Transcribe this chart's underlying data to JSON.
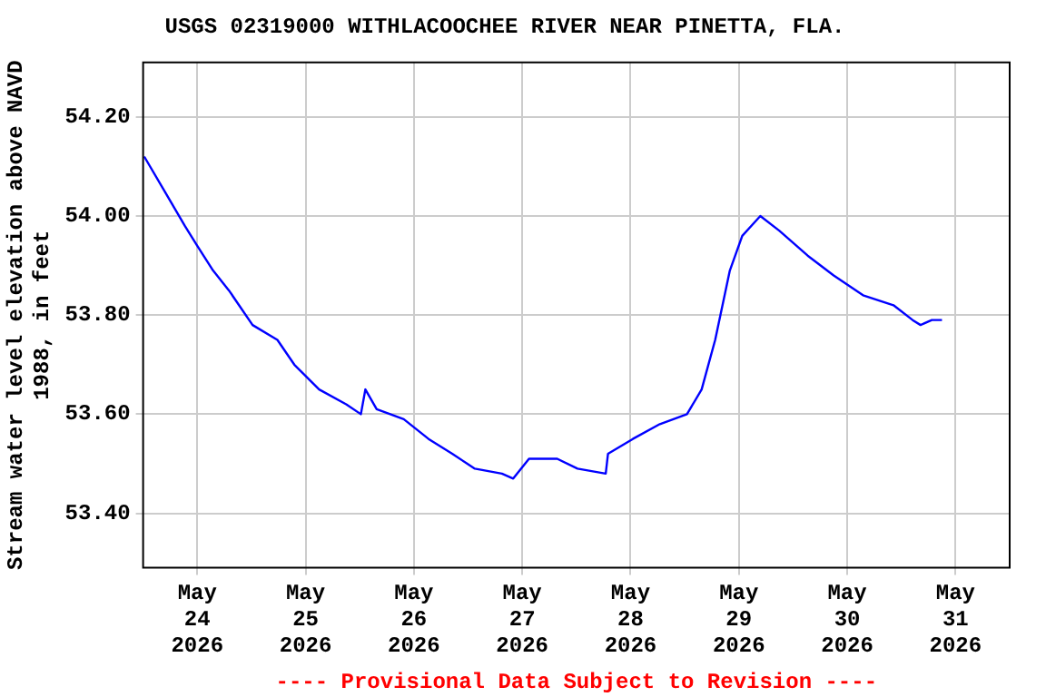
{
  "chart_data": {
    "type": "line",
    "title": "USGS 02319000 WITHLACOOCHEE RIVER NEAR PINETTA, FLA.",
    "ylabel": "Stream water level elevation above NAVD 1988, in feet",
    "x": [
      "2026-05-23T12:15",
      "2026-05-23T16:45",
      "2026-05-23T21:15",
      "2026-05-24T00:00",
      "2026-05-24T03:30",
      "2026-05-24T07:00",
      "2026-05-24T12:15",
      "2026-05-24T17:45",
      "2026-05-24T21:30",
      "2026-05-25T03:00",
      "2026-05-25T09:00",
      "2026-05-25T12:15",
      "2026-05-25T13:15",
      "2026-05-25T15:45",
      "2026-05-25T21:45",
      "2026-05-26T03:15",
      "2026-05-26T08:30",
      "2026-05-26T13:30",
      "2026-05-26T19:30",
      "2026-05-26T22:00",
      "2026-05-27T01:30",
      "2026-05-27T07:45",
      "2026-05-27T12:15",
      "2026-05-27T18:30",
      "2026-05-27T19:00",
      "2026-05-28T00:30",
      "2026-05-28T06:30",
      "2026-05-28T12:30",
      "2026-05-28T15:45",
      "2026-05-28T18:45",
      "2026-05-28T22:00",
      "2026-05-29T00:45",
      "2026-05-29T04:45",
      "2026-05-29T09:00",
      "2026-05-29T15:15",
      "2026-05-29T21:00",
      "2026-05-30T03:30",
      "2026-05-30T10:15",
      "2026-05-30T14:30",
      "2026-05-30T16:15",
      "2026-05-30T18:45",
      "2026-05-30T21:00"
    ],
    "series": [
      {
        "color": "#0000ff",
        "values": [
          54.12,
          54.05,
          53.98,
          53.94,
          53.89,
          53.85,
          53.78,
          53.75,
          53.7,
          53.65,
          53.62,
          53.6,
          53.65,
          53.61,
          53.59,
          53.55,
          53.52,
          53.49,
          53.48,
          53.47,
          53.51,
          53.51,
          53.49,
          53.48,
          53.52,
          53.55,
          53.58,
          53.6,
          53.65,
          53.75,
          53.89,
          53.96,
          54.0,
          53.97,
          53.92,
          53.88,
          53.84,
          53.82,
          53.79,
          53.78,
          53.79,
          53.79
        ]
      }
    ],
    "xlim": [
      "2026-05-23T12:00",
      "2026-05-31T12:00"
    ],
    "xticks": [
      {
        "value": "2026-05-24",
        "label": "May 24 2026"
      },
      {
        "value": "2026-05-25",
        "label": "May 25 2026"
      },
      {
        "value": "2026-05-26",
        "label": "May 26 2026"
      },
      {
        "value": "2026-05-27",
        "label": "May 27 2026"
      },
      {
        "value": "2026-05-28",
        "label": "May 28 2026"
      },
      {
        "value": "2026-05-29",
        "label": "May 29 2026"
      },
      {
        "value": "2026-05-30",
        "label": "May 30 2026"
      },
      {
        "value": "2026-05-31",
        "label": "May 31 2026"
      }
    ],
    "ylim": [
      53.29,
      54.31
    ],
    "yticks": [
      {
        "value": 53.4,
        "label": "53.40"
      },
      {
        "value": 53.6,
        "label": "53.60"
      },
      {
        "value": 53.8,
        "label": "53.80"
      },
      {
        "value": 54.0,
        "label": "54.00"
      },
      {
        "value": 54.2,
        "label": "54.20"
      }
    ],
    "grid": true,
    "legend": false,
    "marker": "none",
    "line_style": "solid",
    "annotations": [
      "---- Provisional Data Subject to Revision ----"
    ]
  }
}
